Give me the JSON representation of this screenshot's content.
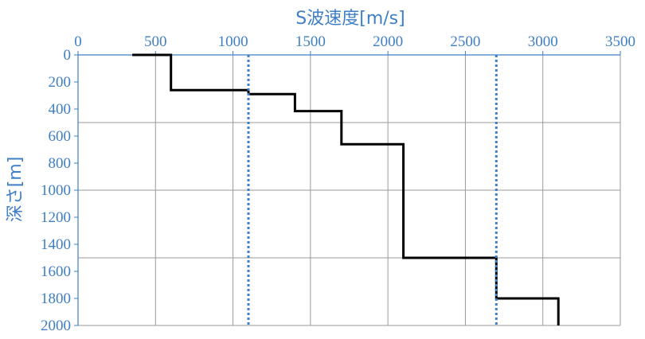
{
  "chart_data": {
    "type": "line",
    "title": "",
    "xlabel": "S波速度[m/s]",
    "ylabel": "深さ[m]",
    "xlim": [
      0,
      3500
    ],
    "ylim": [
      0,
      2000
    ],
    "y_inverted": true,
    "x_axis_position": "top",
    "x_ticks": [
      "0",
      "500",
      "1000",
      "1500",
      "2000",
      "2500",
      "3000",
      "3500"
    ],
    "y_ticks": [
      "0",
      "200",
      "400",
      "600",
      "800",
      "1000",
      "1200",
      "1400",
      "1600",
      "1800",
      "2000"
    ],
    "grid": true,
    "legend": "none",
    "series": [
      {
        "style": "solid",
        "color": "#000000",
        "points": [
          [
            350,
            0
          ],
          [
            600,
            0
          ],
          [
            600,
            260
          ],
          [
            1100,
            260
          ],
          [
            1100,
            290
          ],
          [
            1400,
            290
          ],
          [
            1400,
            415
          ],
          [
            1700,
            415
          ],
          [
            1700,
            660
          ],
          [
            2100,
            660
          ],
          [
            2100,
            1500
          ],
          [
            2700,
            1500
          ],
          [
            2700,
            1800
          ],
          [
            3100,
            1800
          ],
          [
            3100,
            2000
          ]
        ]
      },
      {
        "style": "dotted",
        "color": "#3f7fc5",
        "points": [
          [
            1100,
            0
          ],
          [
            1100,
            2000
          ]
        ]
      },
      {
        "style": "dotted",
        "color": "#3f7fc5",
        "points": [
          [
            2700,
            0
          ],
          [
            2700,
            2000
          ]
        ]
      }
    ]
  }
}
